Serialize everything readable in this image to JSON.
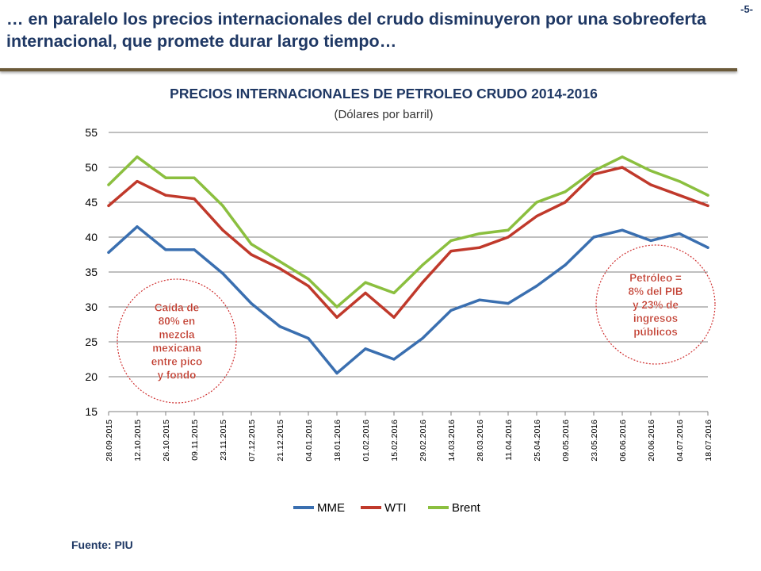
{
  "header": {
    "headline": "… en paralelo los precios internacionales del crudo disminuyeron por una sobreoferta internacional, que promete durar largo tiempo…",
    "page_number": "-5-"
  },
  "source": "Fuente: PIU",
  "chart_data": {
    "type": "line",
    "title": "PRECIOS INTERNACIONALES DE PETROLEO CRUDO 2014-2016",
    "subtitle": "(Dólares por barril)",
    "xlabel": "",
    "ylabel": "",
    "ylim": [
      15,
      55
    ],
    "yticks": [
      15,
      20,
      25,
      30,
      35,
      40,
      45,
      50,
      55
    ],
    "grid": true,
    "legend": "bottom",
    "categories": [
      "28.09.2015",
      "12.10.2015",
      "26.10.2015",
      "09.11.2015",
      "23.11.2015",
      "07.12.2015",
      "21.12.2015",
      "04.01.2016",
      "18.01.2016",
      "01.02.2016",
      "15.02.2016",
      "29.02.2016",
      "14.03.2016",
      "28.03.2016",
      "11.04.2016",
      "25.04.2016",
      "09.05.2016",
      "23.05.2016",
      "06.06.2016",
      "20.06.2016",
      "04.07.2016",
      "18.07.2016"
    ],
    "series": [
      {
        "name": "MME",
        "color": "#3a6fb0",
        "values": [
          37.8,
          41.5,
          38.2,
          38.2,
          34.8,
          30.5,
          27.2,
          25.5,
          20.5,
          24.0,
          22.5,
          25.5,
          29.5,
          31.0,
          30.5,
          33.0,
          36.0,
          40.0,
          41.0,
          39.5,
          40.5,
          38.5
        ]
      },
      {
        "name": "WTI",
        "color": "#c0392b",
        "values": [
          44.5,
          48.0,
          46.0,
          45.5,
          41.0,
          37.5,
          35.5,
          33.0,
          28.5,
          32.0,
          28.5,
          33.5,
          38.0,
          38.5,
          40.0,
          43.0,
          45.0,
          49.0,
          50.0,
          47.5,
          46.0,
          44.5
        ]
      },
      {
        "name": "Brent",
        "color": "#8bbf3f",
        "values": [
          47.5,
          51.5,
          48.5,
          48.5,
          44.5,
          39.0,
          36.5,
          34.0,
          30.0,
          33.5,
          32.0,
          36.0,
          39.5,
          40.5,
          41.0,
          45.0,
          46.5,
          49.5,
          51.5,
          49.5,
          48.0,
          46.0
        ]
      }
    ],
    "annotations": [
      {
        "id": "mme-drop",
        "text": [
          "Caída de",
          "80% en",
          "mezcla",
          "mexicana",
          "entre pico",
          "y fondo"
        ]
      },
      {
        "id": "oil-gdp",
        "text": [
          "Petróleo =",
          "8% del PIB",
          "y 23% de",
          "ingresos",
          "públicos"
        ]
      }
    ]
  }
}
